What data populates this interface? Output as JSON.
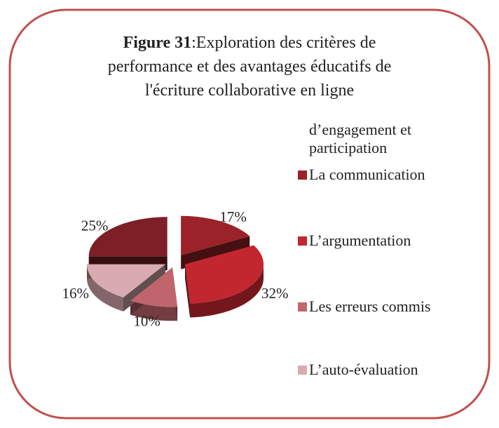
{
  "chart_data": {
    "type": "pie",
    "title_label": "Figure 31",
    "title": ":Exploration des critères de performance et des avantages éducatifs de l'écriture collaborative en ligne",
    "categories": [
      "d’engagement et participation",
      "La communication",
      "L’argumentation",
      "Les erreurs commis",
      "L’auto-évaluation"
    ],
    "values": [
      25,
      17,
      32,
      10,
      16
    ],
    "value_labels": [
      "25%",
      "17%",
      "32%",
      "10%",
      "16%"
    ],
    "colors": [
      "#7d1f26",
      "#9b2228",
      "#c2272f",
      "#c0656d",
      "#d9aab0"
    ]
  }
}
